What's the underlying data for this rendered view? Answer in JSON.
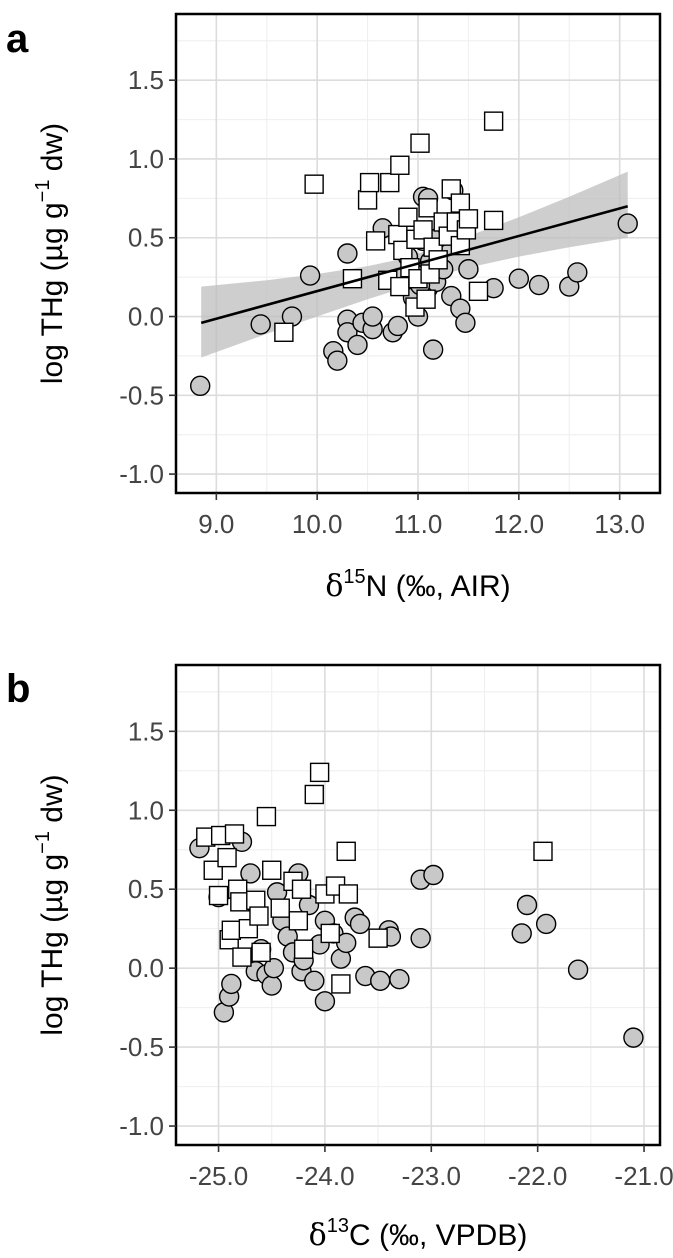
{
  "chart_data": [
    {
      "type": "scatter",
      "panel_label": "a",
      "xlabel": {
        "prefix": "δ",
        "sup": "15",
        "main": "N (‰, AIR)"
      },
      "ylabel": {
        "pre": "log THg (µg g",
        "sup": "−1",
        "post": " dw)"
      },
      "xlim": [
        8.6,
        13.4
      ],
      "ylim": [
        -1.12,
        1.92
      ],
      "xticks": [
        9.0,
        10.0,
        11.0,
        12.0,
        13.0
      ],
      "xtick_labels": [
        "9.0",
        "10.0",
        "11.0",
        "12.0",
        "13.0"
      ],
      "yticks": [
        -1.0,
        -0.5,
        0.0,
        0.5,
        1.0,
        1.5
      ],
      "ytick_labels": [
        "-1.0",
        "-0.5",
        "0.0",
        "0.5",
        "1.0",
        "1.5"
      ],
      "grid": true,
      "colors": {
        "circle_fill": "#c8c8c8",
        "square_fill": "#ffffff",
        "stroke": "#000000",
        "band": "#bdbdbd",
        "line": "#000000"
      },
      "regression": {
        "x": [
          8.85,
          13.08
        ],
        "y": [
          -0.04,
          0.7
        ]
      },
      "confidence_band": {
        "x": [
          8.85,
          9.5,
          10.0,
          10.5,
          10.8,
          11.0,
          11.2,
          11.5,
          12.0,
          12.5,
          13.08
        ],
        "upper": [
          0.19,
          0.23,
          0.27,
          0.32,
          0.36,
          0.4,
          0.44,
          0.51,
          0.63,
          0.76,
          0.92
        ],
        "lower": [
          -0.26,
          -0.11,
          0.0,
          0.11,
          0.17,
          0.22,
          0.26,
          0.31,
          0.38,
          0.44,
          0.5
        ]
      },
      "series": [
        {
          "marker": "circle",
          "points": [
            [
              8.84,
              -0.44
            ],
            [
              9.44,
              -0.05
            ],
            [
              9.75,
              0.0
            ],
            [
              9.93,
              0.26
            ],
            [
              10.16,
              -0.22
            ],
            [
              10.2,
              -0.28
            ],
            [
              10.3,
              -0.02
            ],
            [
              10.3,
              -0.1
            ],
            [
              10.3,
              0.4
            ],
            [
              10.4,
              -0.18
            ],
            [
              10.45,
              -0.04
            ],
            [
              10.55,
              -0.08
            ],
            [
              10.55,
              0.0
            ],
            [
              10.65,
              0.56
            ],
            [
              10.75,
              -0.1
            ],
            [
              10.8,
              -0.06
            ],
            [
              10.9,
              0.38
            ],
            [
              10.95,
              0.12
            ],
            [
              11.0,
              0.0
            ],
            [
              11.05,
              0.48
            ],
            [
              11.05,
              0.76
            ],
            [
              11.1,
              0.18
            ],
            [
              11.1,
              0.75
            ],
            [
              11.15,
              -0.21
            ],
            [
              11.18,
              0.22
            ],
            [
              11.2,
              0.5
            ],
            [
              11.25,
              0.3
            ],
            [
              11.3,
              0.55
            ],
            [
              11.33,
              0.13
            ],
            [
              11.35,
              0.8
            ],
            [
              11.42,
              0.05
            ],
            [
              11.47,
              -0.04
            ],
            [
              11.5,
              0.3
            ],
            [
              11.75,
              0.18
            ],
            [
              12.0,
              0.24
            ],
            [
              12.2,
              0.2
            ],
            [
              12.5,
              0.19
            ],
            [
              12.58,
              0.28
            ],
            [
              13.08,
              0.59
            ],
            [
              11.02,
              0.2
            ],
            [
              10.95,
              0.28
            ],
            [
              11.12,
              0.35
            ]
          ]
        },
        {
          "marker": "square",
          "points": [
            [
              9.67,
              -0.1
            ],
            [
              9.97,
              0.84
            ],
            [
              10.35,
              0.24
            ],
            [
              10.5,
              0.74
            ],
            [
              10.52,
              0.85
            ],
            [
              10.58,
              0.48
            ],
            [
              10.7,
              0.23
            ],
            [
              10.72,
              0.85
            ],
            [
              10.8,
              0.52
            ],
            [
              10.82,
              0.96
            ],
            [
              10.82,
              0.19
            ],
            [
              10.85,
              0.42
            ],
            [
              10.9,
              0.63
            ],
            [
              10.92,
              0.31
            ],
            [
              10.97,
              0.06
            ],
            [
              10.98,
              0.49
            ],
            [
              11.0,
              0.24
            ],
            [
              11.02,
              1.1
            ],
            [
              11.05,
              0.55
            ],
            [
              11.08,
              0.11
            ],
            [
              11.1,
              0.69
            ],
            [
              11.12,
              0.27
            ],
            [
              11.15,
              0.44
            ],
            [
              11.2,
              0.36
            ],
            [
              11.25,
              0.6
            ],
            [
              11.3,
              0.51
            ],
            [
              11.33,
              0.81
            ],
            [
              11.38,
              0.6
            ],
            [
              11.42,
              0.72
            ],
            [
              11.42,
              0.45
            ],
            [
              11.48,
              0.55
            ],
            [
              11.5,
              0.62
            ],
            [
              11.6,
              0.16
            ],
            [
              11.75,
              0.61
            ],
            [
              11.75,
              1.24
            ]
          ]
        }
      ]
    },
    {
      "type": "scatter",
      "panel_label": "b",
      "xlabel": {
        "prefix": "δ",
        "sup": "13",
        "main": "C (‰, VPDB)"
      },
      "ylabel": {
        "pre": "log THg (µg g",
        "sup": "−1",
        "post": " dw)"
      },
      "xlim": [
        -25.4,
        -20.85
      ],
      "ylim": [
        -1.12,
        1.92
      ],
      "xticks": [
        -25.0,
        -24.0,
        -23.0,
        -22.0,
        -21.0
      ],
      "xtick_labels": [
        "-25.0",
        "-24.0",
        "-23.0",
        "-22.0",
        "-21.0"
      ],
      "yticks": [
        -1.0,
        -0.5,
        0.0,
        0.5,
        1.0,
        1.5
      ],
      "ytick_labels": [
        "-1.0",
        "-0.5",
        "0.0",
        "0.5",
        "1.0",
        "1.5"
      ],
      "grid": true,
      "colors": {
        "circle_fill": "#c8c8c8",
        "square_fill": "#ffffff",
        "stroke": "#000000"
      },
      "series": [
        {
          "marker": "circle",
          "points": [
            [
              -25.18,
              0.76
            ],
            [
              -25.0,
              0.45
            ],
            [
              -24.95,
              -0.28
            ],
            [
              -24.9,
              -0.18
            ],
            [
              -24.88,
              -0.1
            ],
            [
              -24.78,
              0.8
            ],
            [
              -24.7,
              0.6
            ],
            [
              -24.65,
              -0.02
            ],
            [
              -24.6,
              0.12
            ],
            [
              -24.55,
              -0.04
            ],
            [
              -24.5,
              -0.11
            ],
            [
              -24.48,
              0.0
            ],
            [
              -24.45,
              0.48
            ],
            [
              -24.4,
              0.3
            ],
            [
              -24.35,
              0.2
            ],
            [
              -24.3,
              0.1
            ],
            [
              -24.25,
              0.6
            ],
            [
              -24.22,
              -0.02
            ],
            [
              -24.2,
              0.05
            ],
            [
              -24.15,
              0.4
            ],
            [
              -24.1,
              -0.08
            ],
            [
              -24.05,
              0.15
            ],
            [
              -24.0,
              -0.21
            ],
            [
              -24.0,
              0.3
            ],
            [
              -23.92,
              0.22
            ],
            [
              -23.85,
              0.06
            ],
            [
              -23.8,
              0.16
            ],
            [
              -23.72,
              0.32
            ],
            [
              -23.67,
              0.28
            ],
            [
              -23.62,
              -0.05
            ],
            [
              -23.48,
              -0.08
            ],
            [
              -23.4,
              0.24
            ],
            [
              -23.38,
              0.2
            ],
            [
              -23.3,
              -0.07
            ],
            [
              -23.1,
              0.56
            ],
            [
              -23.1,
              0.19
            ],
            [
              -22.98,
              0.59
            ],
            [
              -22.15,
              0.22
            ],
            [
              -22.1,
              0.4
            ],
            [
              -21.92,
              0.28
            ],
            [
              -21.62,
              -0.01
            ],
            [
              -21.1,
              -0.44
            ]
          ]
        },
        {
          "marker": "square",
          "points": [
            [
              -25.12,
              0.83
            ],
            [
              -25.05,
              0.62
            ],
            [
              -25.0,
              0.46
            ],
            [
              -24.98,
              0.84
            ],
            [
              -24.92,
              0.7
            ],
            [
              -24.9,
              0.18
            ],
            [
              -24.88,
              0.24
            ],
            [
              -24.85,
              0.85
            ],
            [
              -24.82,
              0.5
            ],
            [
              -24.8,
              0.42
            ],
            [
              -24.78,
              0.07
            ],
            [
              -24.72,
              0.25
            ],
            [
              -24.65,
              0.43
            ],
            [
              -24.6,
              0.1
            ],
            [
              -24.55,
              0.96
            ],
            [
              -24.5,
              0.62
            ],
            [
              -24.42,
              0.38
            ],
            [
              -24.3,
              0.55
            ],
            [
              -24.25,
              0.3
            ],
            [
              -24.22,
              0.5
            ],
            [
              -24.2,
              0.12
            ],
            [
              -24.1,
              1.1
            ],
            [
              -24.05,
              1.24
            ],
            [
              -24.0,
              0.47
            ],
            [
              -23.95,
              0.22
            ],
            [
              -23.9,
              0.52
            ],
            [
              -23.85,
              -0.1
            ],
            [
              -23.8,
              0.74
            ],
            [
              -23.78,
              0.47
            ],
            [
              -23.5,
              0.19
            ],
            [
              -21.95,
              0.74
            ],
            [
              -24.62,
              0.33
            ]
          ]
        }
      ]
    }
  ]
}
